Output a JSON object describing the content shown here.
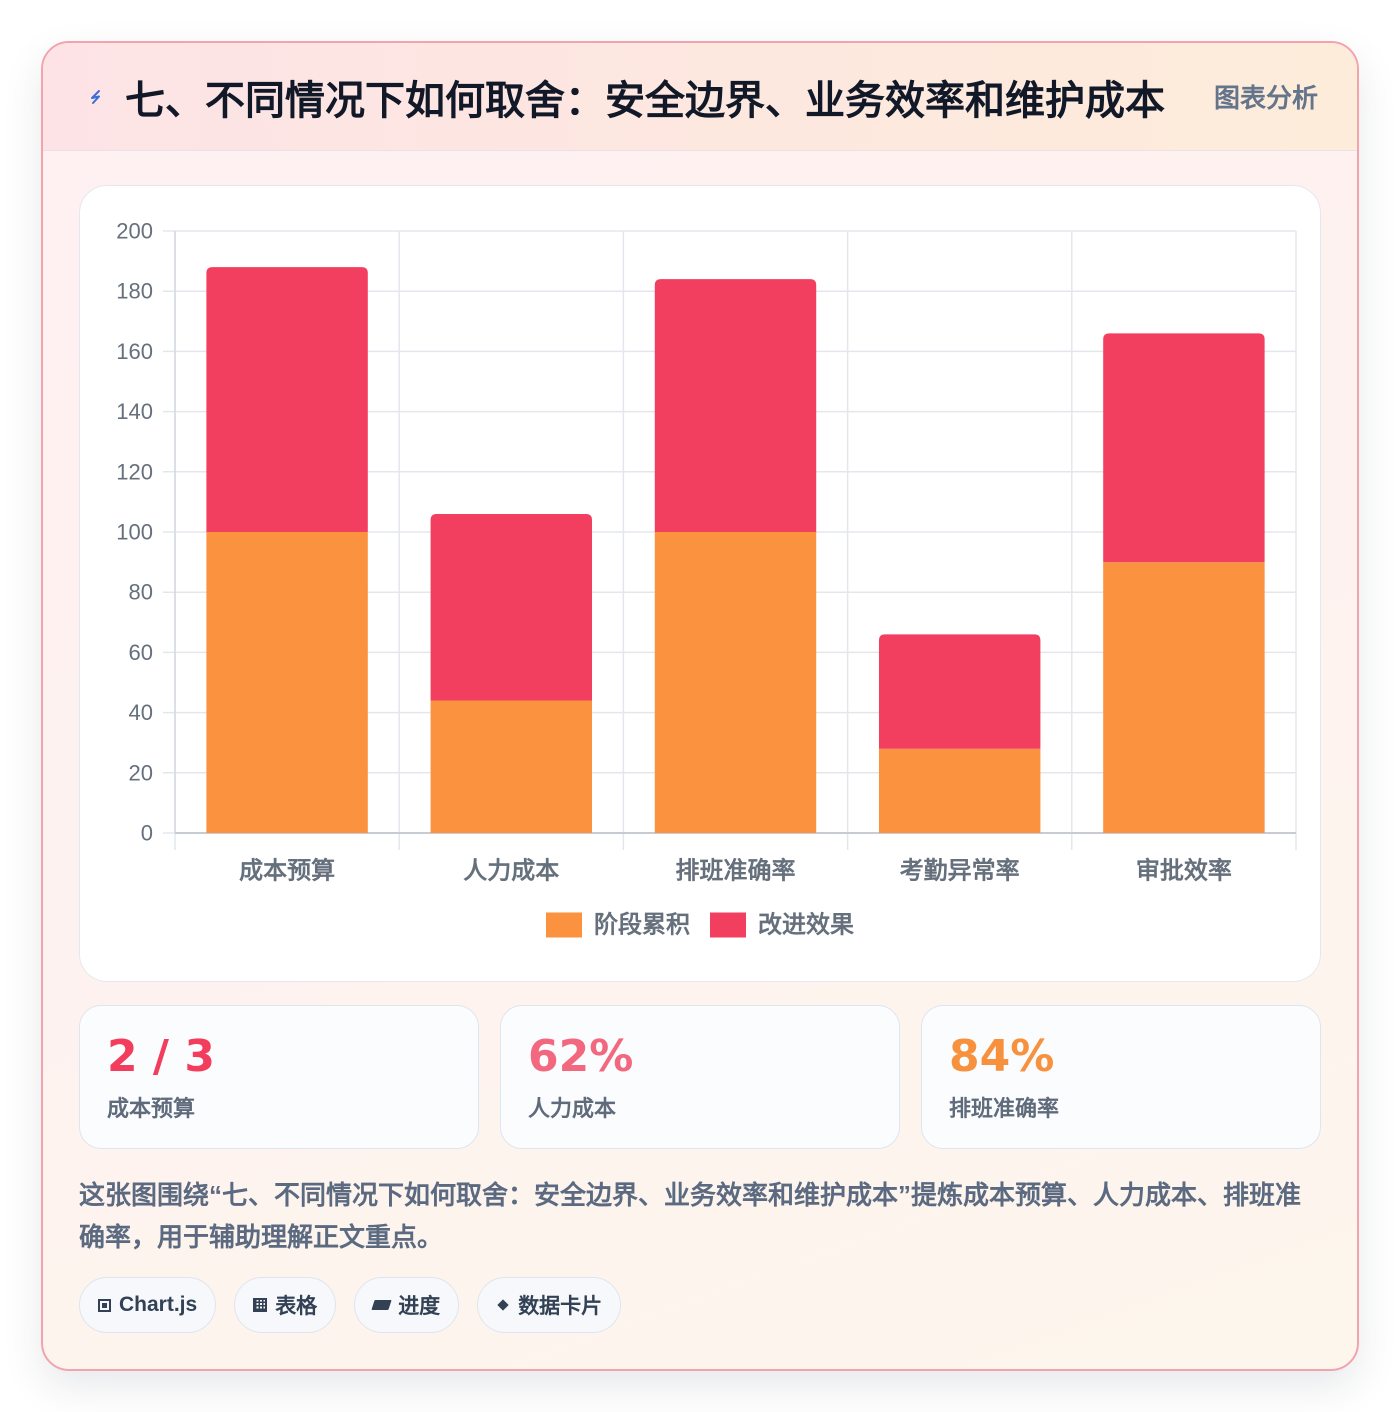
{
  "header": {
    "title": "七、不同情况下如何取舍：安全边界、业务效率和维护成本",
    "badge": "图表分析",
    "icon": "lightning-icon"
  },
  "chart_data": {
    "type": "bar",
    "stacked": true,
    "categories": [
      "成本预算",
      "人力成本",
      "排班准确率",
      "考勤异常率",
      "审批效率"
    ],
    "series": [
      {
        "name": "阶段累积",
        "values": [
          100,
          44,
          100,
          28,
          90
        ],
        "color": "#fa9240"
      },
      {
        "name": "改进效果",
        "values": [
          88,
          62,
          84,
          38,
          76
        ],
        "color": "#f33f5f"
      }
    ],
    "ylim": [
      0,
      200
    ],
    "y_ticks": [
      0,
      20,
      40,
      60,
      80,
      100,
      120,
      140,
      160,
      180,
      200
    ],
    "grid": true,
    "legend": "bottom"
  },
  "stats": [
    {
      "value": "2 / 3",
      "label": "成本预算",
      "color": "#f23d5c"
    },
    {
      "value": "62%",
      "label": "人力成本",
      "color": "#f2687e"
    },
    {
      "value": "84%",
      "label": "排班准确率",
      "color": "#f7913d"
    }
  ],
  "description": "这张图围绕“七、不同情况下如何取舍：安全边界、业务效率和维护成本”提炼成本预算、人力成本、排班准确率，用于辅助理解正文重点。",
  "tags": [
    {
      "label": "Chart.js",
      "icon": "chart-icon"
    },
    {
      "label": "表格",
      "icon": "table-icon"
    },
    {
      "label": "进度",
      "icon": "progress-icon"
    },
    {
      "label": "数据卡片",
      "icon": "card-icon"
    }
  ]
}
